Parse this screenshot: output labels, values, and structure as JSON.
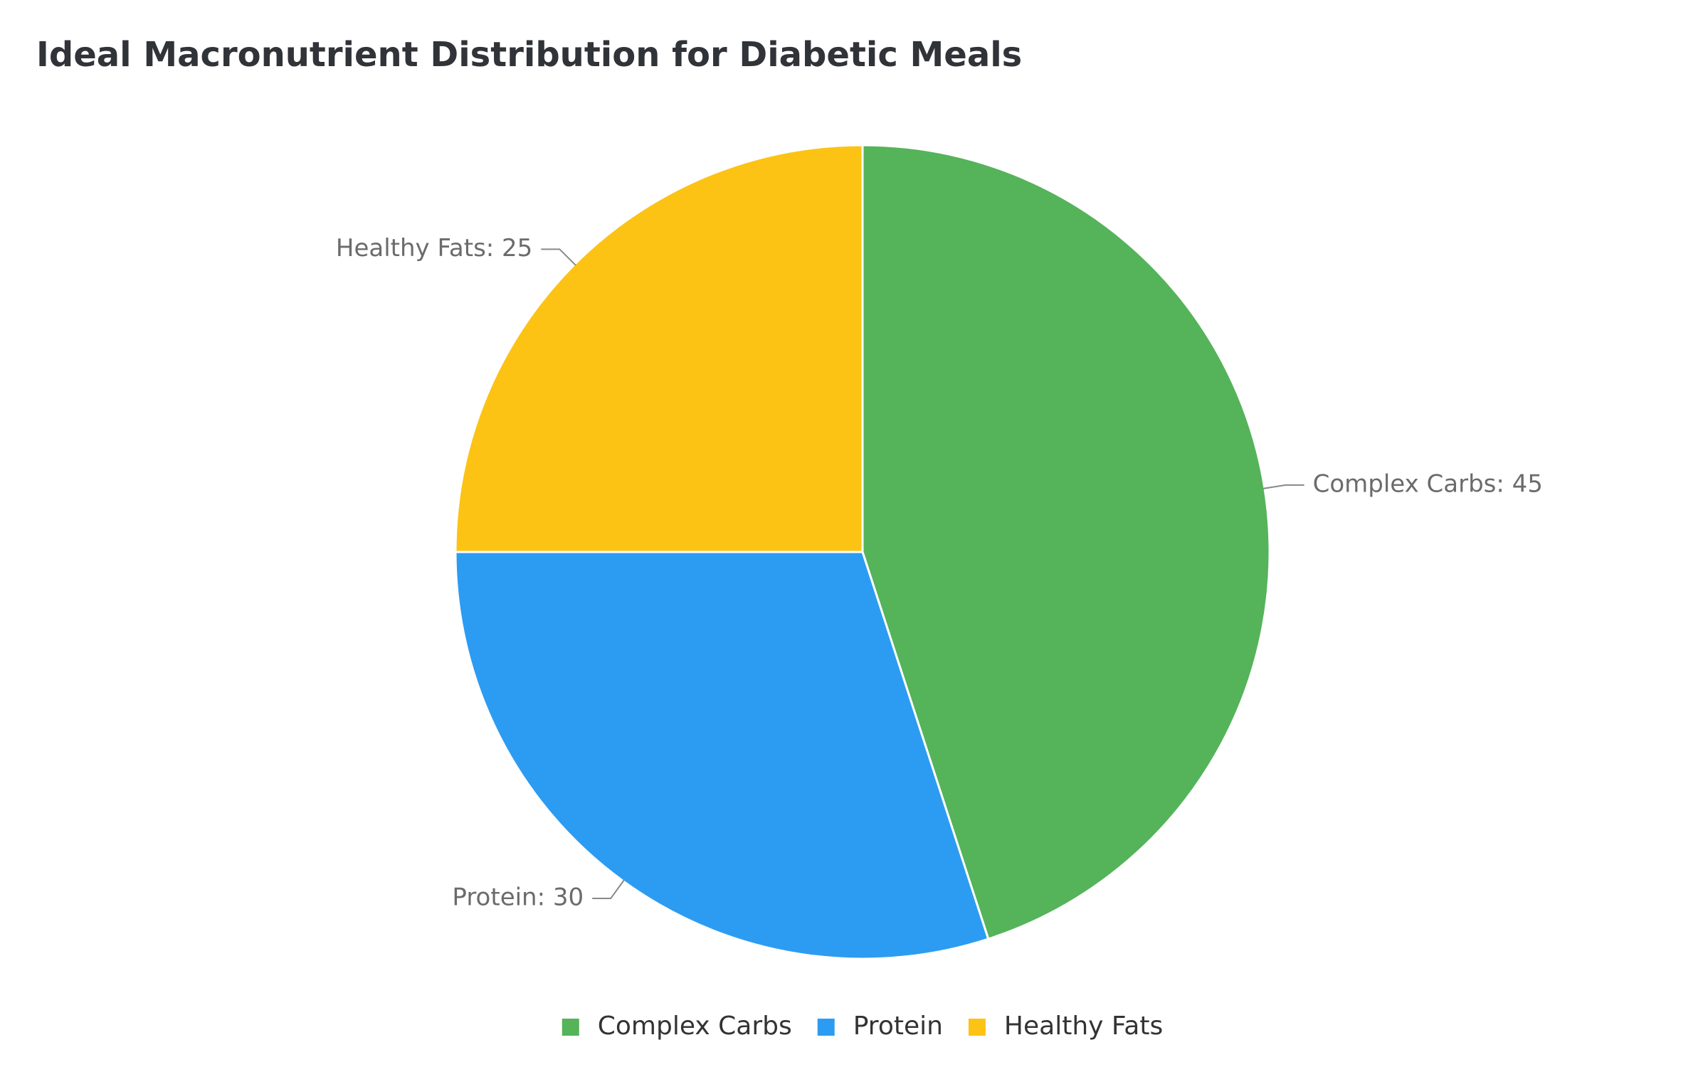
{
  "chart_data": {
    "type": "pie",
    "title": "Ideal Macronutrient Distribution for Diabetic Meals",
    "categories": [
      "Complex Carbs",
      "Protein",
      "Healthy Fats"
    ],
    "values": [
      45,
      30,
      25
    ],
    "value_labels": [
      "Complex Carbs: 45",
      "Protein: 30",
      "Healthy Fats: 25"
    ],
    "colors": [
      "#55b35a",
      "#2c9cf2",
      "#fcc314"
    ],
    "legend": "bottom"
  }
}
